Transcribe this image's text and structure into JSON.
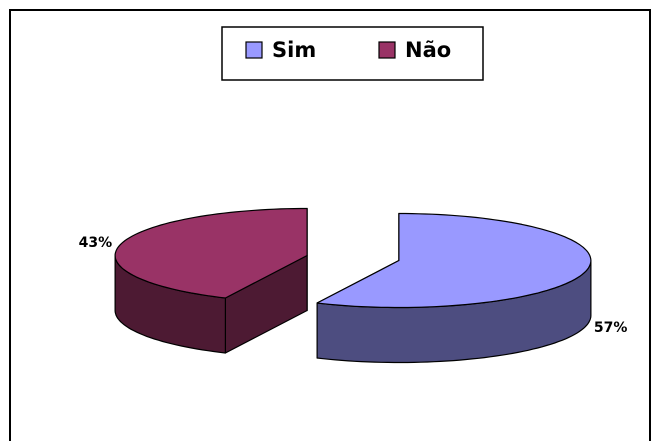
{
  "chart_data": {
    "type": "pie",
    "categories": [
      "Sim",
      "Não"
    ],
    "values": [
      57,
      43
    ],
    "value_labels": [
      "57%",
      "43%"
    ],
    "colors": [
      "#9999ff",
      "#993366"
    ],
    "side_colors": [
      "#4d4d80",
      "#4d1a33"
    ],
    "legend": "top",
    "exploded": true,
    "three_d": true
  }
}
